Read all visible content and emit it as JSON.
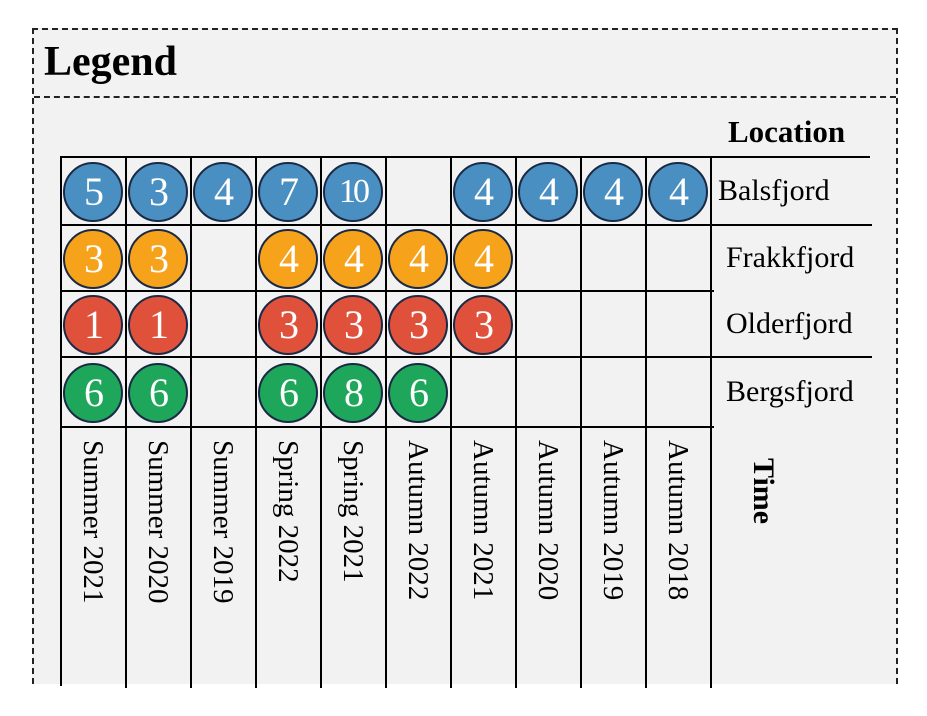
{
  "legend_title": "Legend",
  "location_heading": "Location",
  "time_heading": "Time",
  "colors": {
    "balsfjord": "#4a8fc2",
    "frakkfjord": "#f7a21b",
    "olderfjord": "#e0513c",
    "bergsfjord": "#1ea65a"
  },
  "time_labels": [
    "Summer 2021",
    "Summer 2020",
    "Summer 2019",
    "Spring 2022",
    "Spring 2021",
    "Autumn 2022",
    "Autumn 2021",
    "Autumn 2020",
    "Autumn 2019",
    "Autumn 2018"
  ],
  "locations": [
    {
      "name": "Balsfjord",
      "color_key": "balsfjord",
      "values": [
        "5",
        "3",
        "4",
        "7",
        "10",
        "",
        "4",
        "4",
        "4",
        "4"
      ]
    },
    {
      "name": "Frakkfjord",
      "color_key": "frakkfjord",
      "values": [
        "3",
        "3",
        "",
        "4",
        "4",
        "4",
        "4",
        "",
        "",
        ""
      ]
    },
    {
      "name": "Olderfjord",
      "color_key": "olderfjord",
      "values": [
        "1",
        "1",
        "",
        "3",
        "3",
        "3",
        "3",
        "",
        "",
        ""
      ]
    },
    {
      "name": "Bergsfjord",
      "color_key": "bergsfjord",
      "values": [
        "6",
        "6",
        "",
        "6",
        "8",
        "6",
        "",
        "",
        "",
        ""
      ]
    }
  ]
}
